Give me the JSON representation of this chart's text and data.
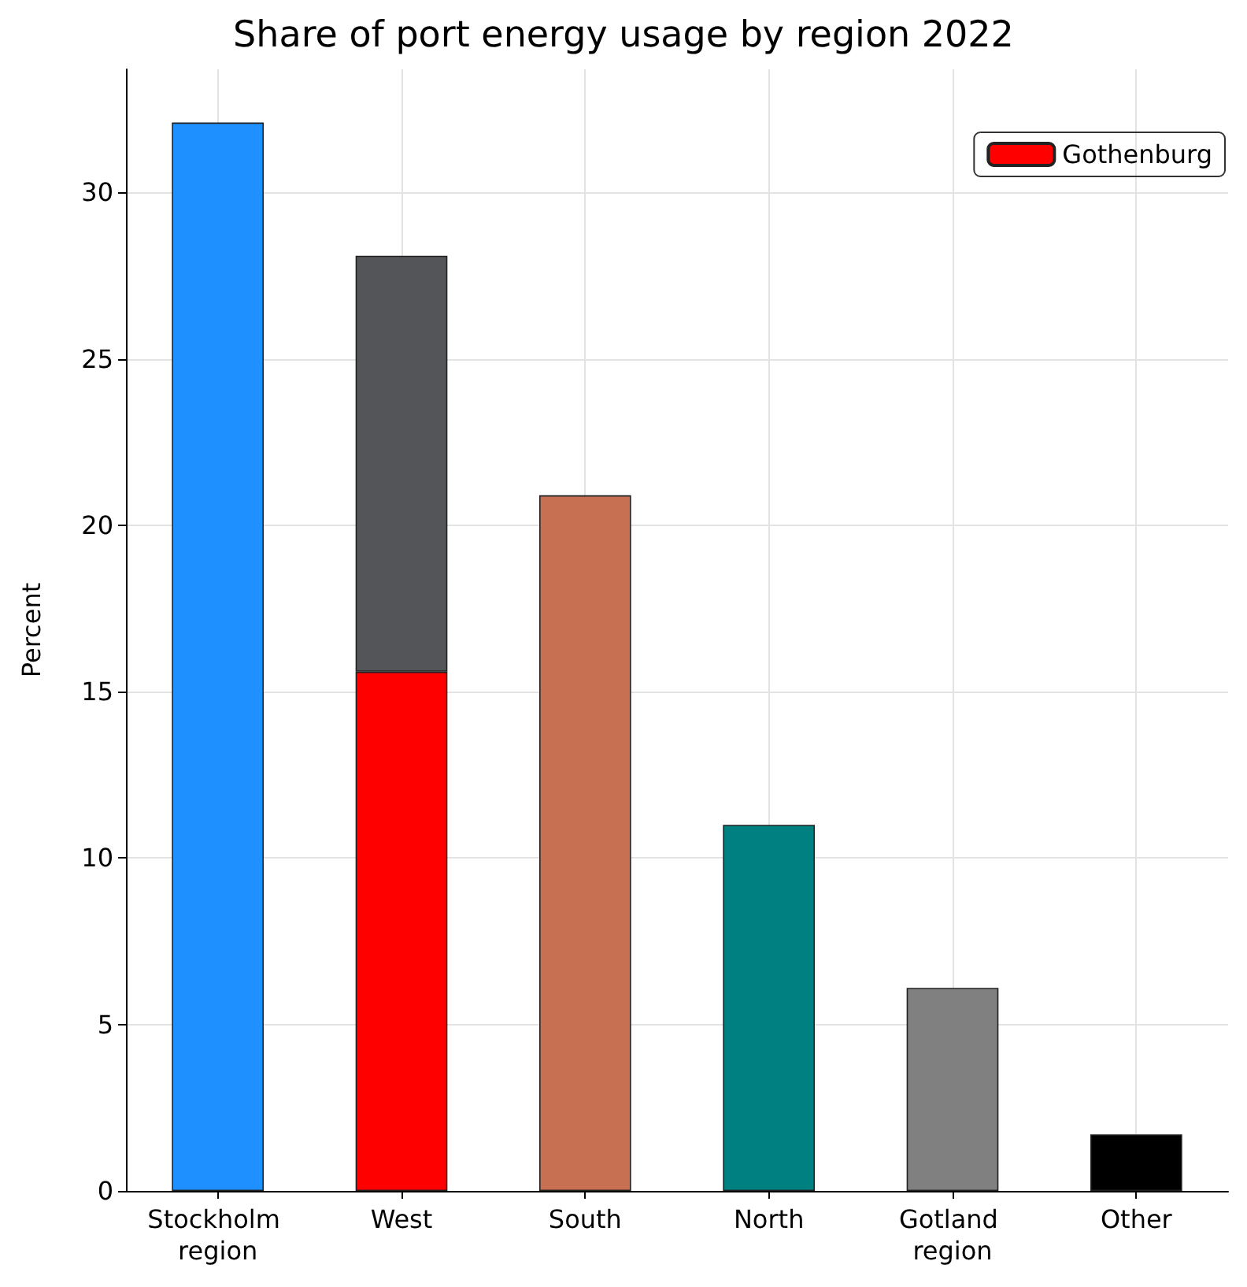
{
  "chart_data": {
    "type": "bar",
    "title": "Share of port energy usage by region 2022",
    "ylabel": "Percent",
    "categories": [
      "Stockholm region",
      "West",
      "South",
      "North",
      "Gotland region",
      "Other"
    ],
    "stacked": true,
    "series": [
      {
        "name": "Gothenburg",
        "color": "#ff0000",
        "values": [
          null,
          15.6,
          null,
          null,
          null,
          null
        ]
      },
      {
        "colors": [
          "#1e90ff",
          "#545559",
          "#c87152",
          "#008080",
          "#808080",
          "#000000"
        ],
        "values": [
          32.1,
          12.5,
          20.9,
          11.0,
          6.1,
          1.7
        ]
      }
    ],
    "ylim": [
      0,
      33.7
    ],
    "yticks": [
      0,
      5,
      10,
      15,
      20,
      25,
      30
    ],
    "grid": true,
    "legend": "top right"
  }
}
